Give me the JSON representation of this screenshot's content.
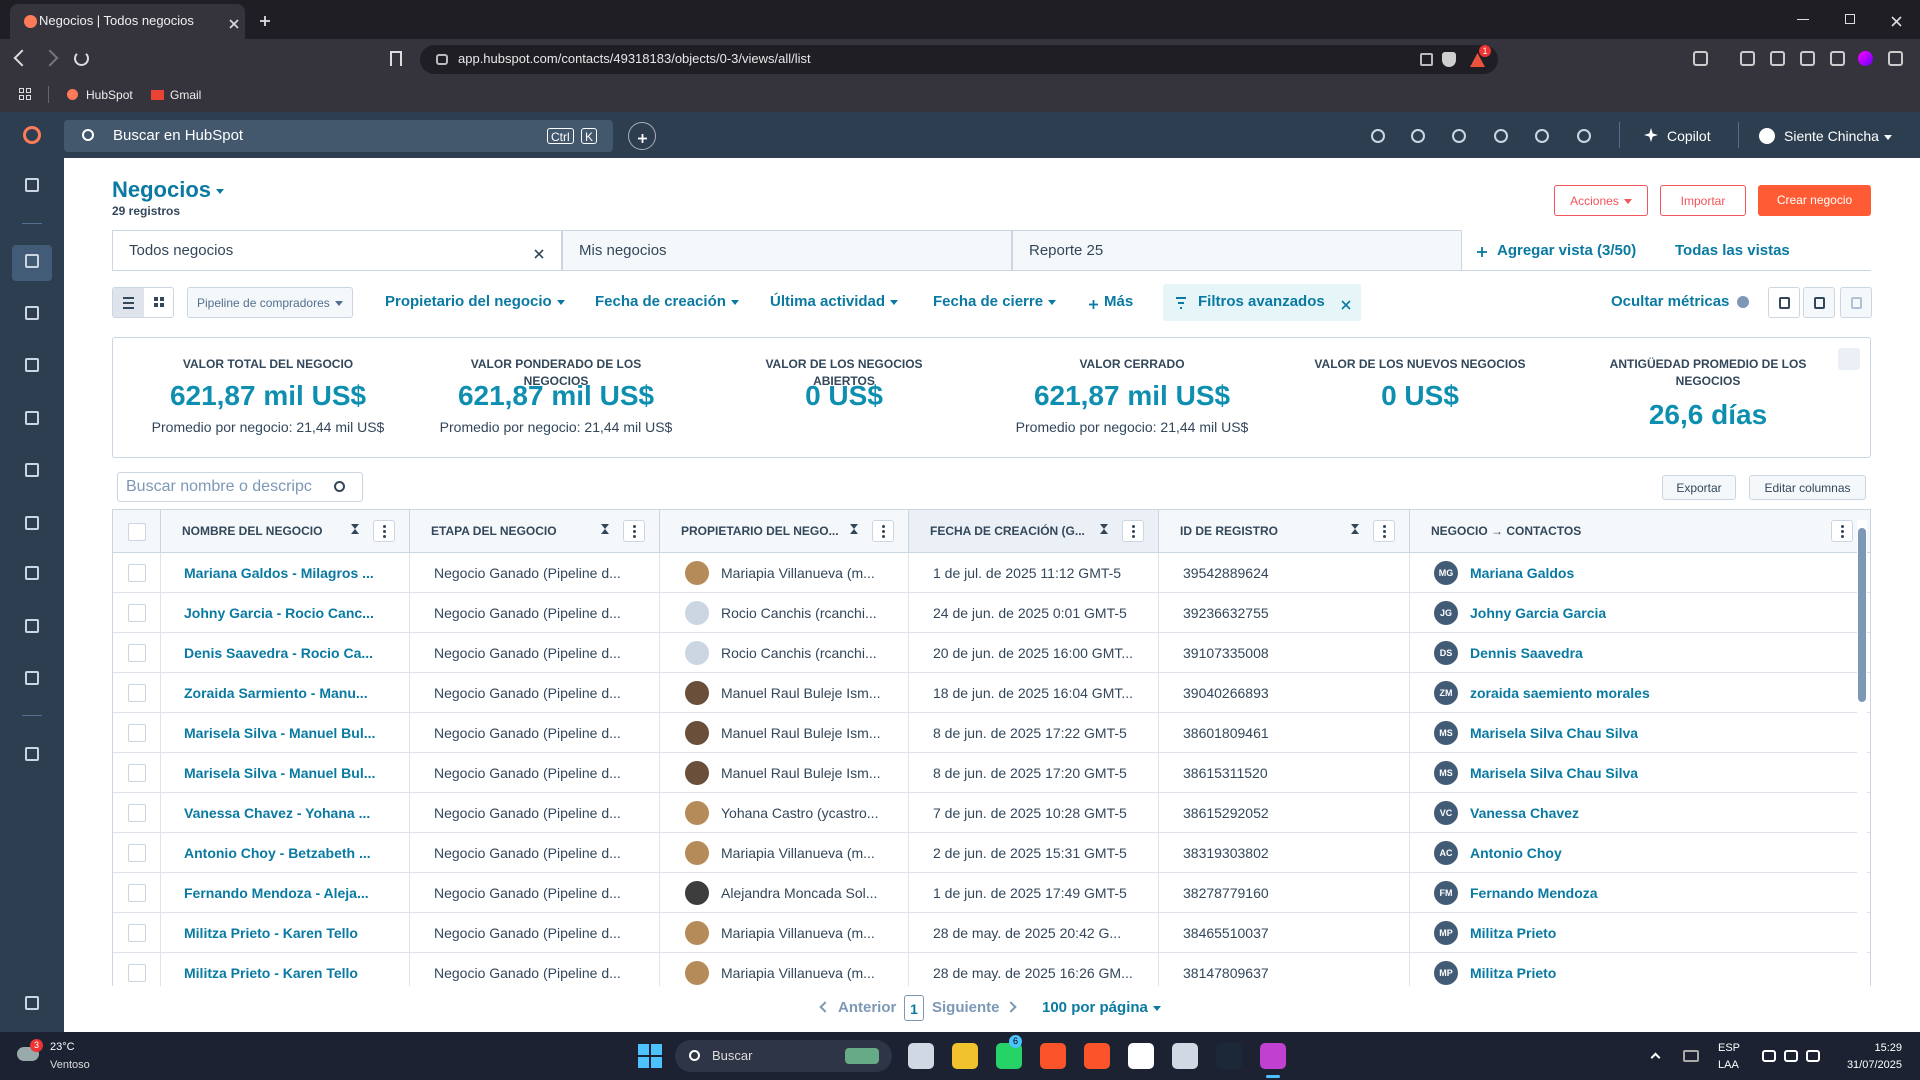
{
  "browser": {
    "tab_title": "Negocios | Todos negocios",
    "url": "app.hubspot.com/contacts/49318183/objects/0-3/views/all/list",
    "shields_badge": "1",
    "bookmarks": [
      "HubSpot",
      "Gmail"
    ]
  },
  "hubspot_nav": {
    "search_placeholder": "Buscar en HubSpot",
    "shortcut": [
      "Ctrl",
      "K"
    ],
    "copilot": "Copilot",
    "user": "Siente Chincha"
  },
  "header": {
    "title": "Negocios",
    "record_count": "29 registros",
    "buttons": [
      "Acciones",
      "Importar",
      "Crear negocio"
    ]
  },
  "views": {
    "tabs": [
      "Todos negocios",
      "Mis negocios",
      "Reporte 25"
    ],
    "add_view": "Agregar vista (3/50)",
    "all_views": "Todas las vistas"
  },
  "filters": {
    "pipeline": "Pipeline de compradores",
    "items": [
      "Propietario del negocio",
      "Fecha de creación",
      "Última actividad",
      "Fecha de cierre"
    ],
    "more": "Más",
    "advanced": "Filtros avanzados",
    "hide_metrics": "Ocultar métricas"
  },
  "metrics": [
    {
      "label": "VALOR TOTAL DEL NEGOCIO",
      "value": "621,87 mil US$",
      "sub": "Promedio por negocio: 21,44 mil US$"
    },
    {
      "label": "VALOR PONDERADO DE LOS NEGOCIOS",
      "value": "621,87 mil US$",
      "sub": "Promedio por negocio: 21,44 mil US$"
    },
    {
      "label": "VALOR DE LOS NEGOCIOS ABIERTOS",
      "value": "0 US$"
    },
    {
      "label": "VALOR CERRADO",
      "value": "621,87 mil US$",
      "sub": "Promedio por negocio: 21,44 mil US$"
    },
    {
      "label": "VALOR DE LOS NUEVOS NEGOCIOS",
      "value": "0 US$"
    },
    {
      "label": "ANTIGÜEDAD PROMEDIO DE LOS NEGOCIOS",
      "value": "26,6 días"
    }
  ],
  "table": {
    "search_placeholder": "Buscar nombre o descripc",
    "export": "Exportar",
    "edit_columns": "Editar columnas",
    "columns": [
      "NOMBRE DEL NEGOCIO",
      "ETAPA DEL NEGOCIO",
      "PROPIETARIO DEL NEGO...",
      "FECHA DE CREACIÓN (G...",
      "ID DE REGISTRO",
      "NEGOCIO → CONTACTOS"
    ],
    "rows": [
      [
        "Mariana Galdos - Milagros ...",
        "Negocio Ganado (Pipeline d...",
        "Mariapia Villanueva (m...",
        "1 de jul. de 2025 11:12 GMT-5",
        "39542889624",
        "MG",
        "Mariana Galdos"
      ],
      [
        "Johny Garcia - Rocio Canc...",
        "Negocio Ganado (Pipeline d...",
        "Rocio Canchis (rcanchi...",
        "24 de jun. de 2025 0:01 GMT-5",
        "39236632755",
        "JG",
        "Johny Garcia Garcia"
      ],
      [
        "Denis Saavedra - Rocio Ca...",
        "Negocio Ganado (Pipeline d...",
        "Rocio Canchis (rcanchi...",
        "20 de jun. de 2025 16:00 GMT...",
        "39107335008",
        "DS",
        "Dennis Saavedra"
      ],
      [
        "Zoraida Sarmiento - Manu...",
        "Negocio Ganado (Pipeline d...",
        "Manuel Raul Buleje Ism...",
        "18 de jun. de 2025 16:04 GMT...",
        "39040266893",
        "ZM",
        "zoraida saemiento morales"
      ],
      [
        "Marisela Silva - Manuel Bul...",
        "Negocio Ganado (Pipeline d...",
        "Manuel Raul Buleje Ism...",
        "8 de jun. de 2025 17:22 GMT-5",
        "38601809461",
        "MS",
        "Marisela Silva Chau Silva"
      ],
      [
        "Marisela Silva - Manuel Bul...",
        "Negocio Ganado (Pipeline d...",
        "Manuel Raul Buleje Ism...",
        "8 de jun. de 2025 17:20 GMT-5",
        "38615311520",
        "MS",
        "Marisela Silva Chau Silva"
      ],
      [
        "Vanessa Chavez - Yohana ...",
        "Negocio Ganado (Pipeline d...",
        "Yohana Castro (ycastro...",
        "7 de jun. de 2025 10:28 GMT-5",
        "38615292052",
        "VC",
        "Vanessa Chavez"
      ],
      [
        "Antonio Choy - Betzabeth ...",
        "Negocio Ganado (Pipeline d...",
        "Mariapia Villanueva (m...",
        "2 de jun. de 2025 15:31 GMT-5",
        "38319303802",
        "AC",
        "Antonio Choy"
      ],
      [
        "Fernando Mendoza - Aleja...",
        "Negocio Ganado (Pipeline d...",
        "Alejandra Moncada Sol...",
        "1 de jun. de 2025 17:49 GMT-5",
        "38278779160",
        "FM",
        "Fernando Mendoza"
      ],
      [
        "Militza Prieto - Karen Tello",
        "Negocio Ganado (Pipeline d...",
        "Mariapia Villanueva (m...",
        "28 de may. de 2025 20:42 G...",
        "38465510037",
        "MP",
        "Militza Prieto"
      ],
      [
        "Militza Prieto - Karen Tello",
        "Negocio Ganado (Pipeline d...",
        "Mariapia Villanueva (m...",
        "28 de may. de 2025 16:26 GM...",
        "38147809637",
        "MP",
        "Militza Prieto"
      ]
    ]
  },
  "pagination": {
    "previous": "Anterior",
    "page": "1",
    "next": "Siguiente",
    "per_page": "100 por página"
  },
  "taskbar": {
    "weather_badge": "3",
    "temperature": "23°C",
    "weather": "Ventoso",
    "search": "Buscar",
    "whatsapp_badge": "6",
    "language": [
      "ESP",
      "LAA"
    ],
    "time": "15:29",
    "date": "31/07/2025"
  }
}
